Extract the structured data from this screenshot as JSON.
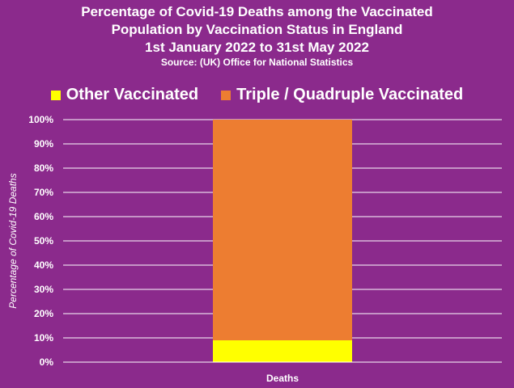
{
  "title_lines": [
    "Percentage of Covid-19 Deaths among the Vaccinated",
    "Population by Vaccination Status in England",
    "1st January 2022 to 31st May 2022"
  ],
  "source": "Source:  (UK) Office for National Statistics",
  "colors": {
    "background": "#8b2a8c",
    "other_vaccinated": "#ffff00",
    "triple_quadruple": "#ed7d31",
    "grid": "#ffffff"
  },
  "chart_data": {
    "type": "bar",
    "stacked": true,
    "categories": [
      "Deaths"
    ],
    "series": [
      {
        "name": "Other Vaccinated",
        "values": [
          9
        ],
        "color": "#ffff00"
      },
      {
        "name": "Triple / Quadruple Vaccinated",
        "values": [
          91
        ],
        "color": "#ed7d31"
      }
    ],
    "ylabel": "Percentage of Covid-19 Deaths",
    "ylim": [
      0,
      100
    ],
    "yticks": [
      "0%",
      "10%",
      "20%",
      "30%",
      "40%",
      "50%",
      "60%",
      "70%",
      "80%",
      "90%",
      "100%"
    ],
    "grid": true,
    "legend_position": "top"
  }
}
